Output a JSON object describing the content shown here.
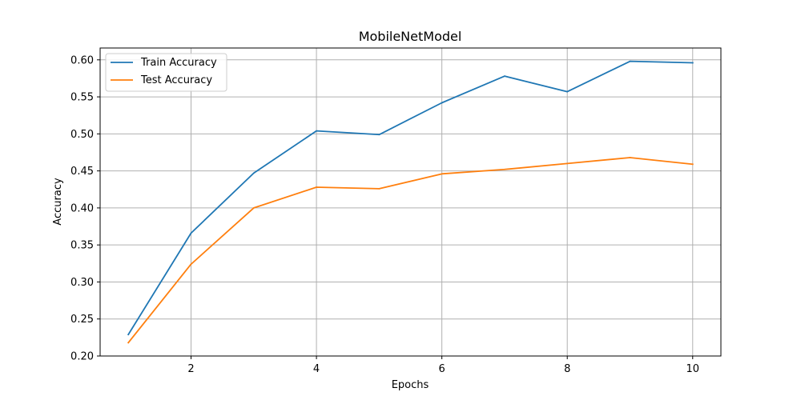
{
  "chart_data": {
    "type": "line",
    "title": "MobileNetModel",
    "xlabel": "Epochs",
    "ylabel": "Accuracy",
    "x": [
      1,
      2,
      3,
      4,
      5,
      6,
      7,
      8,
      9,
      10
    ],
    "xlim": [
      0.55,
      10.45
    ],
    "ylim": [
      0.2,
      0.616
    ],
    "xticks": [
      2,
      4,
      6,
      8,
      10
    ],
    "xtick_labels": [
      "2",
      "4",
      "6",
      "8",
      "10"
    ],
    "yticks": [
      0.2,
      0.25,
      0.3,
      0.35,
      0.4,
      0.45,
      0.5,
      0.55,
      0.6
    ],
    "ytick_labels": [
      "0.20",
      "0.25",
      "0.30",
      "0.35",
      "0.40",
      "0.45",
      "0.50",
      "0.55",
      "0.60"
    ],
    "grid": true,
    "legend_position": "top-left",
    "series": [
      {
        "name": "Train Accuracy",
        "color": "#1f77b4",
        "values": [
          0.229,
          0.366,
          0.447,
          0.504,
          0.499,
          0.542,
          0.578,
          0.557,
          0.598,
          0.596
        ]
      },
      {
        "name": "Test Accuracy",
        "color": "#ff7f0e",
        "values": [
          0.218,
          0.324,
          0.4,
          0.428,
          0.426,
          0.446,
          0.452,
          0.46,
          0.468,
          0.459
        ]
      }
    ]
  }
}
